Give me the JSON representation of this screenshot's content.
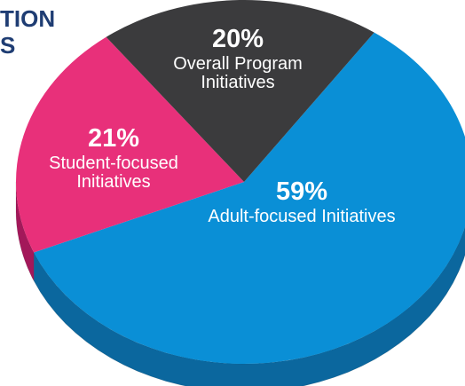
{
  "chart_data": {
    "type": "pie",
    "title_lines": [
      "TION",
      "S"
    ],
    "categories": [
      "Adult-focused Initiatives",
      "Student-focused Initiatives",
      "Overall Program Initiatives"
    ],
    "values": [
      59,
      21,
      20
    ],
    "value_labels": [
      "59%",
      "21%",
      "20%"
    ],
    "colors": [
      "#0a8fd6",
      "#e8307a",
      "#3b3b3d"
    ],
    "side_colors": [
      "#0b679e",
      "#a3185a",
      "#262628"
    ],
    "title_color": "#1f3d73"
  }
}
